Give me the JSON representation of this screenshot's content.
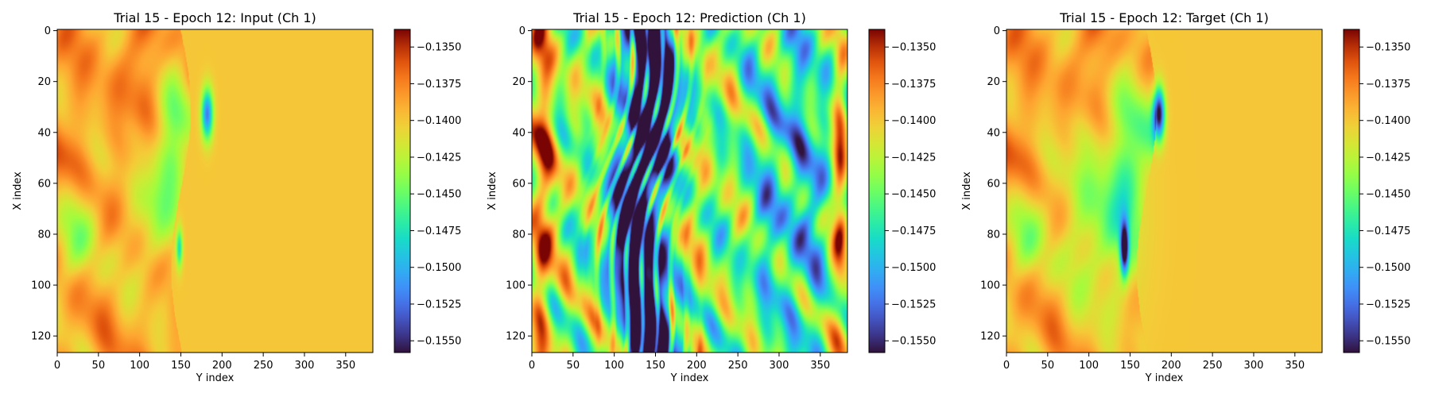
{
  "chart_data": [
    {
      "type": "heatmap",
      "title": "Trial 15 - Epoch 12: Input (Ch 1)",
      "xlabel": "Y index",
      "ylabel": "X index",
      "xlim": [
        0,
        383
      ],
      "ylim": [
        127,
        0
      ],
      "xticks": [
        "0",
        "50",
        "100",
        "150",
        "200",
        "250",
        "300",
        "350"
      ],
      "yticks": [
        "0",
        "20",
        "40",
        "60",
        "80",
        "100",
        "120"
      ],
      "colorbar_ticks": [
        "-0.1350",
        "-0.1375",
        "-0.1400",
        "-0.1425",
        "-0.1450",
        "-0.1475",
        "-0.1500",
        "-0.1525",
        "-0.1550"
      ],
      "colorbar_range": [
        -0.1558,
        -0.1338
      ],
      "colormap": "turbo",
      "field": "input"
    },
    {
      "type": "heatmap",
      "title": "Trial 15 - Epoch 12: Prediction (Ch 1)",
      "xlabel": "Y index",
      "ylabel": "X index",
      "xlim": [
        0,
        383
      ],
      "ylim": [
        127,
        0
      ],
      "xticks": [
        "0",
        "50",
        "100",
        "150",
        "200",
        "250",
        "300",
        "350"
      ],
      "yticks": [
        "0",
        "20",
        "40",
        "60",
        "80",
        "100",
        "120"
      ],
      "colorbar_ticks": [
        "-0.1350",
        "-0.1375",
        "-0.1400",
        "-0.1425",
        "-0.1450",
        "-0.1475",
        "-0.1500",
        "-0.1525",
        "-0.1550"
      ],
      "colorbar_range": [
        -0.1558,
        -0.1338
      ],
      "colormap": "turbo",
      "field": "prediction"
    },
    {
      "type": "heatmap",
      "title": "Trial 15 - Epoch 12: Target (Ch 1)",
      "xlabel": "Y index",
      "ylabel": "X index",
      "xlim": [
        0,
        383
      ],
      "ylim": [
        127,
        0
      ],
      "xticks": [
        "0",
        "50",
        "100",
        "150",
        "200",
        "250",
        "300",
        "350"
      ],
      "yticks": [
        "0",
        "20",
        "40",
        "60",
        "80",
        "100",
        "120"
      ],
      "colorbar_ticks": [
        "-0.1350",
        "-0.1375",
        "-0.1400",
        "-0.1425",
        "-0.1450",
        "-0.1475",
        "-0.1500",
        "-0.1525",
        "-0.1550"
      ],
      "colorbar_range": [
        -0.1558,
        -0.1338
      ],
      "colormap": "turbo",
      "field": "target"
    }
  ]
}
